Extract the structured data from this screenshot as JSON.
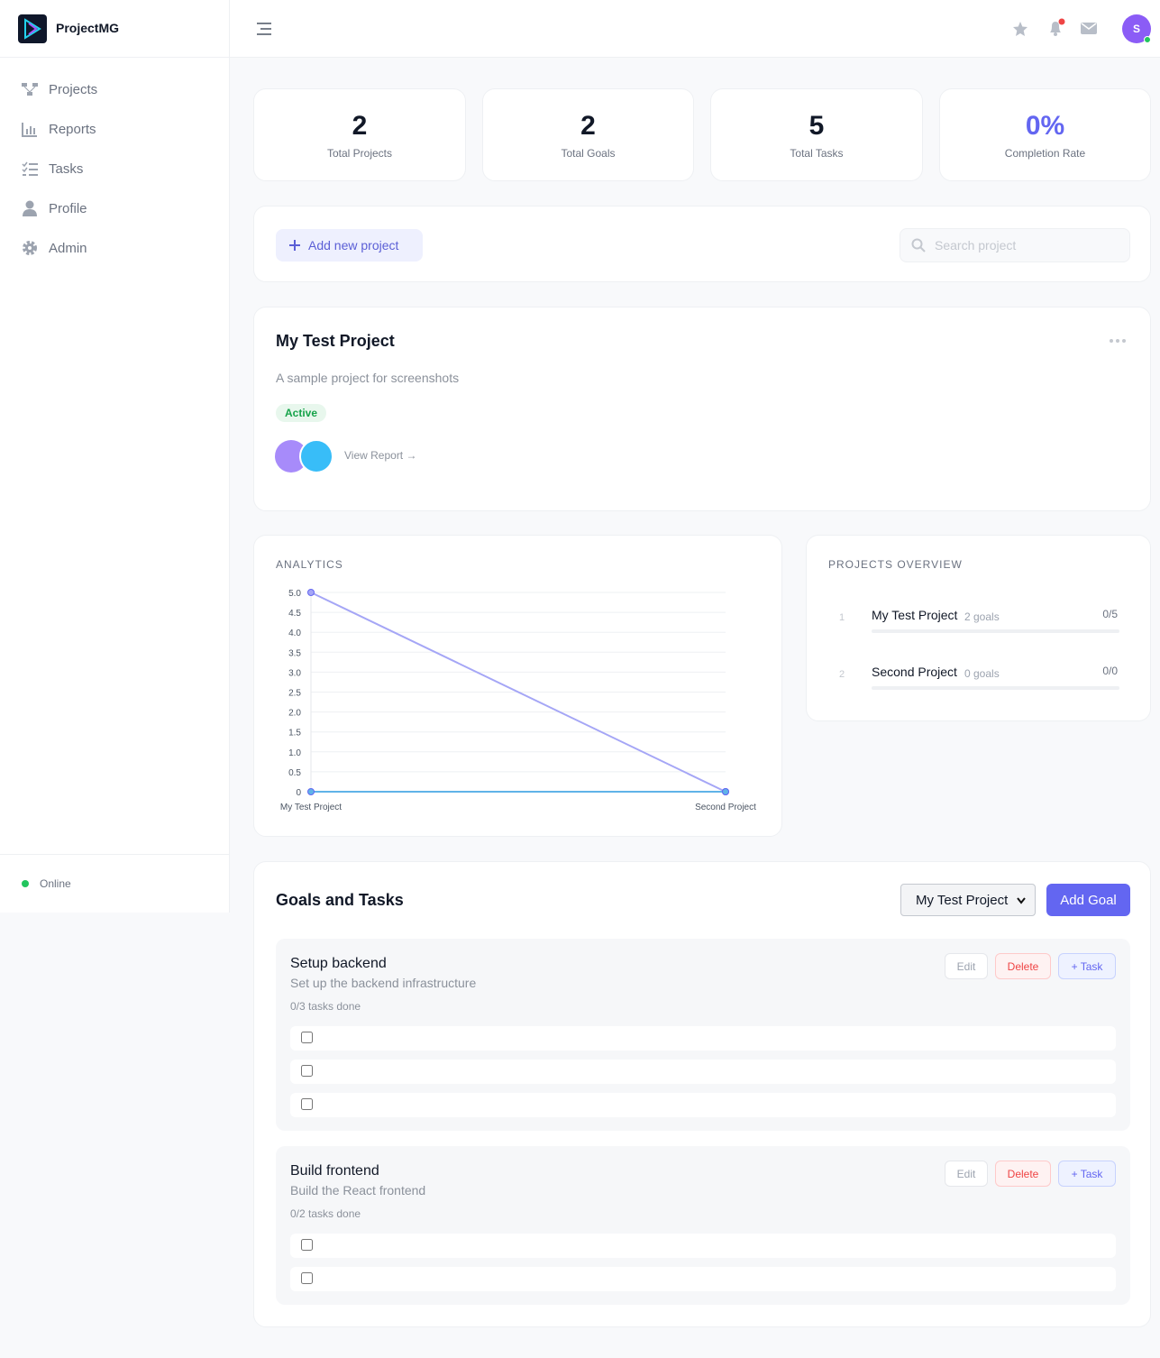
{
  "brand": "ProjectMG",
  "nav": [
    "Projects",
    "Reports",
    "Tasks",
    "Profile",
    "Admin"
  ],
  "status": "Online",
  "avatar": "S",
  "stats": [
    {
      "value": "2",
      "label": "Total Projects"
    },
    {
      "value": "2",
      "label": "Total Goals"
    },
    {
      "value": "5",
      "label": "Total Tasks"
    },
    {
      "value": "0%",
      "label": "Completion Rate"
    }
  ],
  "toolbar": {
    "add_button": "Add new project",
    "search_placeholder": "Search project"
  },
  "project": {
    "title": "My Test Project",
    "description": "A sample project for screenshots",
    "status": "Active",
    "link": "View Report →"
  },
  "chart_data": {
    "type": "line",
    "title": "ANALYTICS",
    "categories": [
      "My Test Project",
      "Second Project"
    ],
    "series": [
      {
        "color": "#a5a6f6",
        "values": [
          5,
          0
        ]
      },
      {
        "color": "#5fb3e8",
        "values": [
          0,
          0
        ]
      }
    ],
    "ylim": [
      0,
      5
    ],
    "yticks": [
      0,
      0.5,
      {
        "value": 1,
        "label": "1.0"
      },
      1.5,
      {
        "value": 2,
        "label": "2.0"
      },
      2.5,
      {
        "value": 3,
        "label": "3.0"
      },
      3.5,
      {
        "value": 4,
        "label": "4.0"
      },
      4.5,
      {
        "value": 5,
        "label": "5.0"
      }
    ],
    "grid": true
  },
  "overview": {
    "title": "PROJECTS OVERVIEW",
    "items": [
      {
        "rank": "1",
        "name": "My Test Project",
        "goals": "2 goals",
        "progress": "0/5"
      },
      {
        "rank": "2",
        "name": "Second Project",
        "goals": "0 goals",
        "progress": "0/0"
      }
    ]
  },
  "goals_section": {
    "title": "Goals and Tasks",
    "select": "My Test Project",
    "add_button": "Add Goal",
    "actions": [
      "Edit",
      "Delete",
      "+ Task"
    ],
    "goals": [
      {
        "title": "Setup backend",
        "description": "Set up the backend infrastructure",
        "count": "0/3 tasks done"
      },
      {
        "title": "Build frontend",
        "description": "Build the React frontend",
        "count": "0/2 tasks done"
      }
    ]
  }
}
